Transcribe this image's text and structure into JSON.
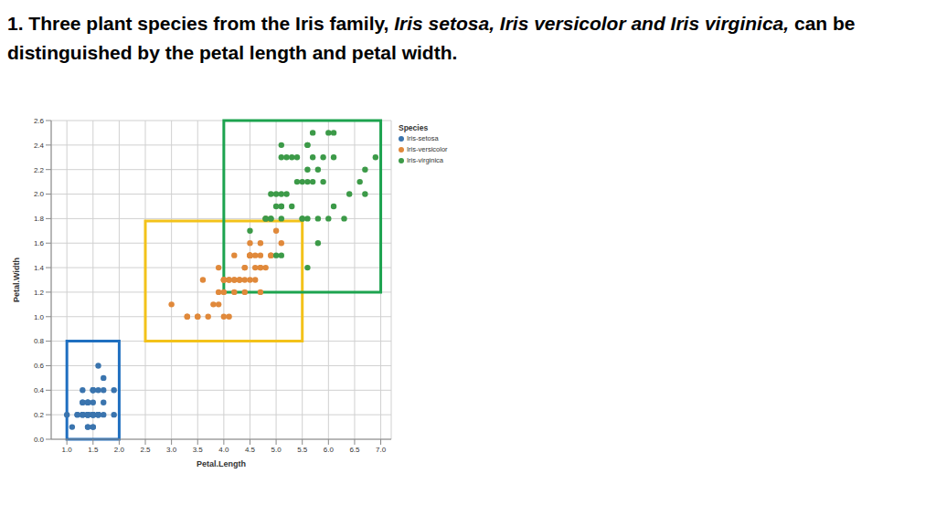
{
  "chart_data": {
    "type": "scatter",
    "title": [
      "1. Three plant species from the Iris family,  ",
      "Iris setosa, Iris versicolor and Iris virginica,",
      " can be distinguished by the petal length and petal width."
    ],
    "x_label": "Petal.Length",
    "y_label": "Petal.Width",
    "legend_title": "Species",
    "legend": "right",
    "grid": true,
    "marker": "circle",
    "xlim": [
      0.7,
      7.2
    ],
    "xticks": [
      {
        "value": 1,
        "label": "1.0"
      },
      1.5,
      {
        "value": 2,
        "label": "2.0"
      },
      2.5,
      {
        "value": 3,
        "label": "3.0"
      },
      3.5,
      {
        "value": 4,
        "label": "4.0"
      },
      4.5,
      {
        "value": 5,
        "label": "5.0"
      },
      5.5,
      {
        "value": 6,
        "label": "6.0"
      },
      6.5,
      {
        "value": 7,
        "label": "7.0"
      }
    ],
    "ylim": [
      0,
      2.6
    ],
    "yticks": [
      {
        "value": 0,
        "label": "0.0"
      },
      0.2,
      0.4,
      0.6,
      0.8,
      {
        "value": 1,
        "label": "1.0"
      },
      1.2,
      1.4,
      1.6,
      1.8,
      {
        "value": 2,
        "label": "2.0"
      },
      2.2,
      2.4,
      2.6
    ],
    "regions": [
      {
        "x": [
          1.0,
          2.0
        ],
        "y": [
          0,
          0.8
        ],
        "color": "#1f6fc0"
      },
      {
        "x": [
          2.5,
          5.5
        ],
        "y": [
          0.8,
          1.78
        ],
        "color": "#f3c21a"
      },
      {
        "x": [
          4.0,
          7.0
        ],
        "y": [
          1.2,
          2.6
        ],
        "color": "#1da34f"
      }
    ],
    "series": [
      {
        "name": "Iris-setosa",
        "color": "#3a74ae",
        "x": [
          1.4,
          1.4,
          1.3,
          1.5,
          1.4,
          1.7,
          1.4,
          1.5,
          1.4,
          1.5,
          1.5,
          1.6,
          1.4,
          1.1,
          1.2,
          1.5,
          1.3,
          1.4,
          1.7,
          1.5,
          1.7,
          1.5,
          1.0,
          1.7,
          1.9,
          1.6,
          1.6,
          1.5,
          1.4,
          1.6,
          1.6,
          1.5,
          1.5,
          1.4,
          1.5,
          1.2,
          1.3,
          1.4,
          1.3,
          1.5,
          1.3,
          1.3,
          1.3,
          1.6,
          1.9,
          1.4,
          1.6,
          1.4,
          1.5,
          1.4
        ],
        "values": [
          0.2,
          0.2,
          0.2,
          0.2,
          0.2,
          0.4,
          0.3,
          0.2,
          0.2,
          0.1,
          0.2,
          0.2,
          0.1,
          0.1,
          0.2,
          0.4,
          0.4,
          0.3,
          0.3,
          0.3,
          0.2,
          0.4,
          0.2,
          0.5,
          0.2,
          0.2,
          0.4,
          0.2,
          0.2,
          0.2,
          0.2,
          0.4,
          0.1,
          0.2,
          0.2,
          0.2,
          0.2,
          0.1,
          0.2,
          0.2,
          0.3,
          0.3,
          0.2,
          0.6,
          0.4,
          0.3,
          0.2,
          0.2,
          0.2,
          0.2
        ]
      },
      {
        "name": "Iris-versicolor",
        "color": "#e0893b",
        "x": [
          4.7,
          4.5,
          4.9,
          4.0,
          4.6,
          4.5,
          4.7,
          3.3,
          4.6,
          3.9,
          3.5,
          4.2,
          4.0,
          4.7,
          3.6,
          4.4,
          4.5,
          4.1,
          4.5,
          3.9,
          4.8,
          4.0,
          4.9,
          4.7,
          4.3,
          4.4,
          4.8,
          5.0,
          4.5,
          3.5,
          3.8,
          3.7,
          3.9,
          5.1,
          4.5,
          4.5,
          4.7,
          4.4,
          4.1,
          4.0,
          4.4,
          4.6,
          4.0,
          3.3,
          4.2,
          4.2,
          4.2,
          4.3,
          3.0,
          4.1
        ],
        "values": [
          1.4,
          1.5,
          1.5,
          1.3,
          1.5,
          1.3,
          1.6,
          1.0,
          1.3,
          1.4,
          1.0,
          1.5,
          1.0,
          1.4,
          1.3,
          1.4,
          1.5,
          1.0,
          1.5,
          1.1,
          1.8,
          1.3,
          1.5,
          1.2,
          1.3,
          1.4,
          1.4,
          1.7,
          1.5,
          1.0,
          1.1,
          1.0,
          1.2,
          1.6,
          1.5,
          1.6,
          1.5,
          1.3,
          1.3,
          1.3,
          1.2,
          1.4,
          1.2,
          1.0,
          1.3,
          1.2,
          1.3,
          1.3,
          1.1,
          1.3
        ]
      },
      {
        "name": "Iris-virginica",
        "color": "#3c9a48",
        "x": [
          6.0,
          5.1,
          5.9,
          5.6,
          5.8,
          6.6,
          4.5,
          6.3,
          5.8,
          6.1,
          5.1,
          5.3,
          5.5,
          5.0,
          5.1,
          5.3,
          5.5,
          6.7,
          6.9,
          5.0,
          5.7,
          4.9,
          6.7,
          4.9,
          5.7,
          6.0,
          4.8,
          4.9,
          5.6,
          5.8,
          6.1,
          6.4,
          5.6,
          5.1,
          5.6,
          6.1,
          5.6,
          5.5,
          4.8,
          5.4,
          5.6,
          5.1,
          5.1,
          5.9,
          5.7,
          5.2,
          5.0,
          5.2,
          5.4,
          5.1
        ],
        "values": [
          2.5,
          1.9,
          2.1,
          1.8,
          2.2,
          2.1,
          1.7,
          1.8,
          1.8,
          2.5,
          2.0,
          1.9,
          2.1,
          2.0,
          2.4,
          2.3,
          1.8,
          2.2,
          2.3,
          1.5,
          2.3,
          2.0,
          2.0,
          1.8,
          2.1,
          1.8,
          1.8,
          1.8,
          2.1,
          1.6,
          1.9,
          2.0,
          2.2,
          1.5,
          1.4,
          2.3,
          2.4,
          1.8,
          1.8,
          2.1,
          2.4,
          2.3,
          1.9,
          2.3,
          2.5,
          2.3,
          1.9,
          2.0,
          2.3,
          1.8
        ]
      }
    ]
  }
}
